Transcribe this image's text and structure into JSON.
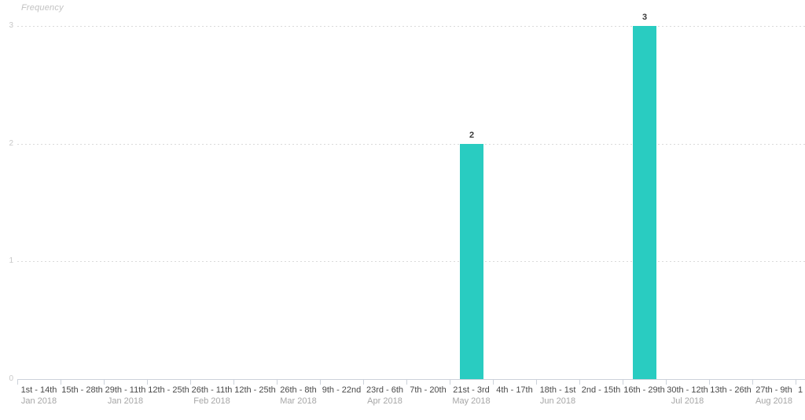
{
  "chart": {
    "title": "Frequency",
    "colors": {
      "bar": "#29ccc1",
      "axis_line": "#ccd2da",
      "grid_line": "#dadada",
      "y_tick_label": "#c8c8c8",
      "x_range_label": "#4a4a4a",
      "x_month_label": "#a6a6a6",
      "value_label": "#3a3a3a",
      "title": "#c2c2c2",
      "background": "#ffffff"
    },
    "chart_data": {
      "type": "bar",
      "title": "Frequency",
      "xlabel": "",
      "ylabel": "Frequency",
      "ylim": [
        0,
        3
      ],
      "yticks": [
        0,
        1,
        2,
        3
      ],
      "grid": "horizontal-dotted",
      "legend_position": "none",
      "bar_color": "#29ccc1",
      "categories": [
        {
          "range": "1st - 14th",
          "month": "Jan 2018"
        },
        {
          "range": "15th - 28th",
          "month": ""
        },
        {
          "range": "29th - 11th",
          "month": "Jan 2018"
        },
        {
          "range": "12th - 25th",
          "month": ""
        },
        {
          "range": "26th - 11th",
          "month": "Feb 2018"
        },
        {
          "range": "12th - 25th",
          "month": ""
        },
        {
          "range": "26th - 8th",
          "month": "Mar 2018"
        },
        {
          "range": "9th - 22nd",
          "month": ""
        },
        {
          "range": "23rd - 6th",
          "month": "Apr 2018"
        },
        {
          "range": "7th - 20th",
          "month": ""
        },
        {
          "range": "21st - 3rd",
          "month": "May 2018"
        },
        {
          "range": "4th - 17th",
          "month": ""
        },
        {
          "range": "18th - 1st",
          "month": "Jun 2018"
        },
        {
          "range": "2nd - 15th",
          "month": ""
        },
        {
          "range": "16th - 29th",
          "month": ""
        },
        {
          "range": "30th - 12th",
          "month": "Jul 2018"
        },
        {
          "range": "13th - 26th",
          "month": ""
        },
        {
          "range": "27th - 9th",
          "month": "Aug 2018"
        },
        {
          "range": "1",
          "month": "",
          "partial": true
        }
      ],
      "values": [
        0,
        0,
        0,
        0,
        0,
        0,
        0,
        0,
        0,
        0,
        2,
        0,
        0,
        0,
        3,
        0,
        0,
        0,
        0
      ],
      "value_labels": {
        "shown": true,
        "nonzero_only": true
      }
    }
  }
}
